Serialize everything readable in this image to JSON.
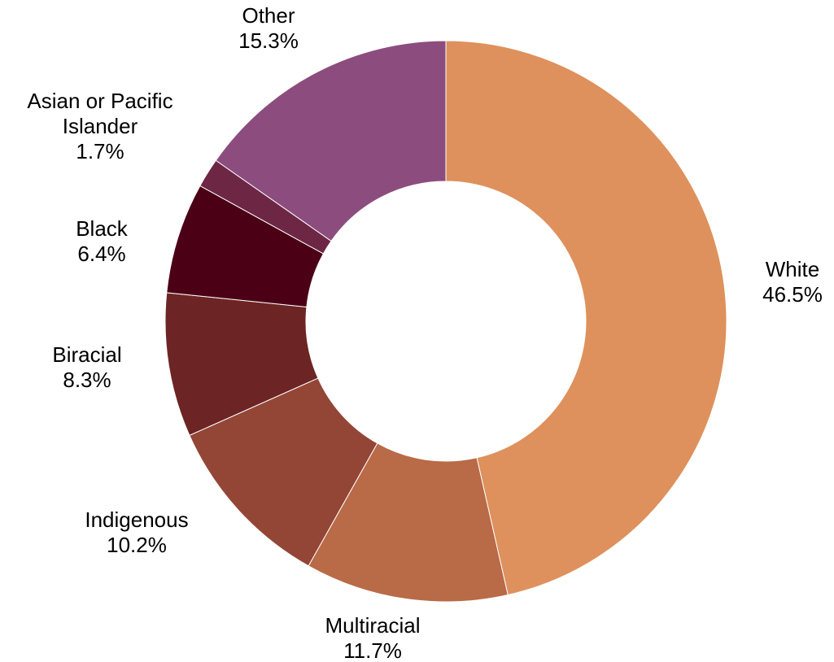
{
  "chart_data": {
    "type": "donut",
    "title": "",
    "legend": "none",
    "start_angle_deg": 0,
    "direction": "clockwise",
    "slices": [
      {
        "name": "White",
        "label": "White",
        "value": "46.5%",
        "percent": 46.5,
        "color": "#DE915C"
      },
      {
        "name": "Multiracial",
        "label": "Multiracial",
        "value": "11.7%",
        "percent": 11.7,
        "color": "#B96A47"
      },
      {
        "name": "Indigenous",
        "label": "Indigenous",
        "value": "10.2%",
        "percent": 10.2,
        "color": "#934636"
      },
      {
        "name": "Biracial",
        "label": "Biracial",
        "value": "8.3%",
        "percent": 8.3,
        "color": "#6D2424"
      },
      {
        "name": "Black",
        "label": "Black",
        "value": "6.4%",
        "percent": 6.4,
        "color": "#4B0016"
      },
      {
        "name": "Asian or Pacific Islander",
        "label": "Asian or Pacific Islander",
        "value": "1.7%",
        "percent": 1.7,
        "color": "#6E2645"
      },
      {
        "name": "Other",
        "label": "Other",
        "value": "15.3%",
        "percent": 15.3,
        "color": "#8C4D7E"
      }
    ]
  }
}
